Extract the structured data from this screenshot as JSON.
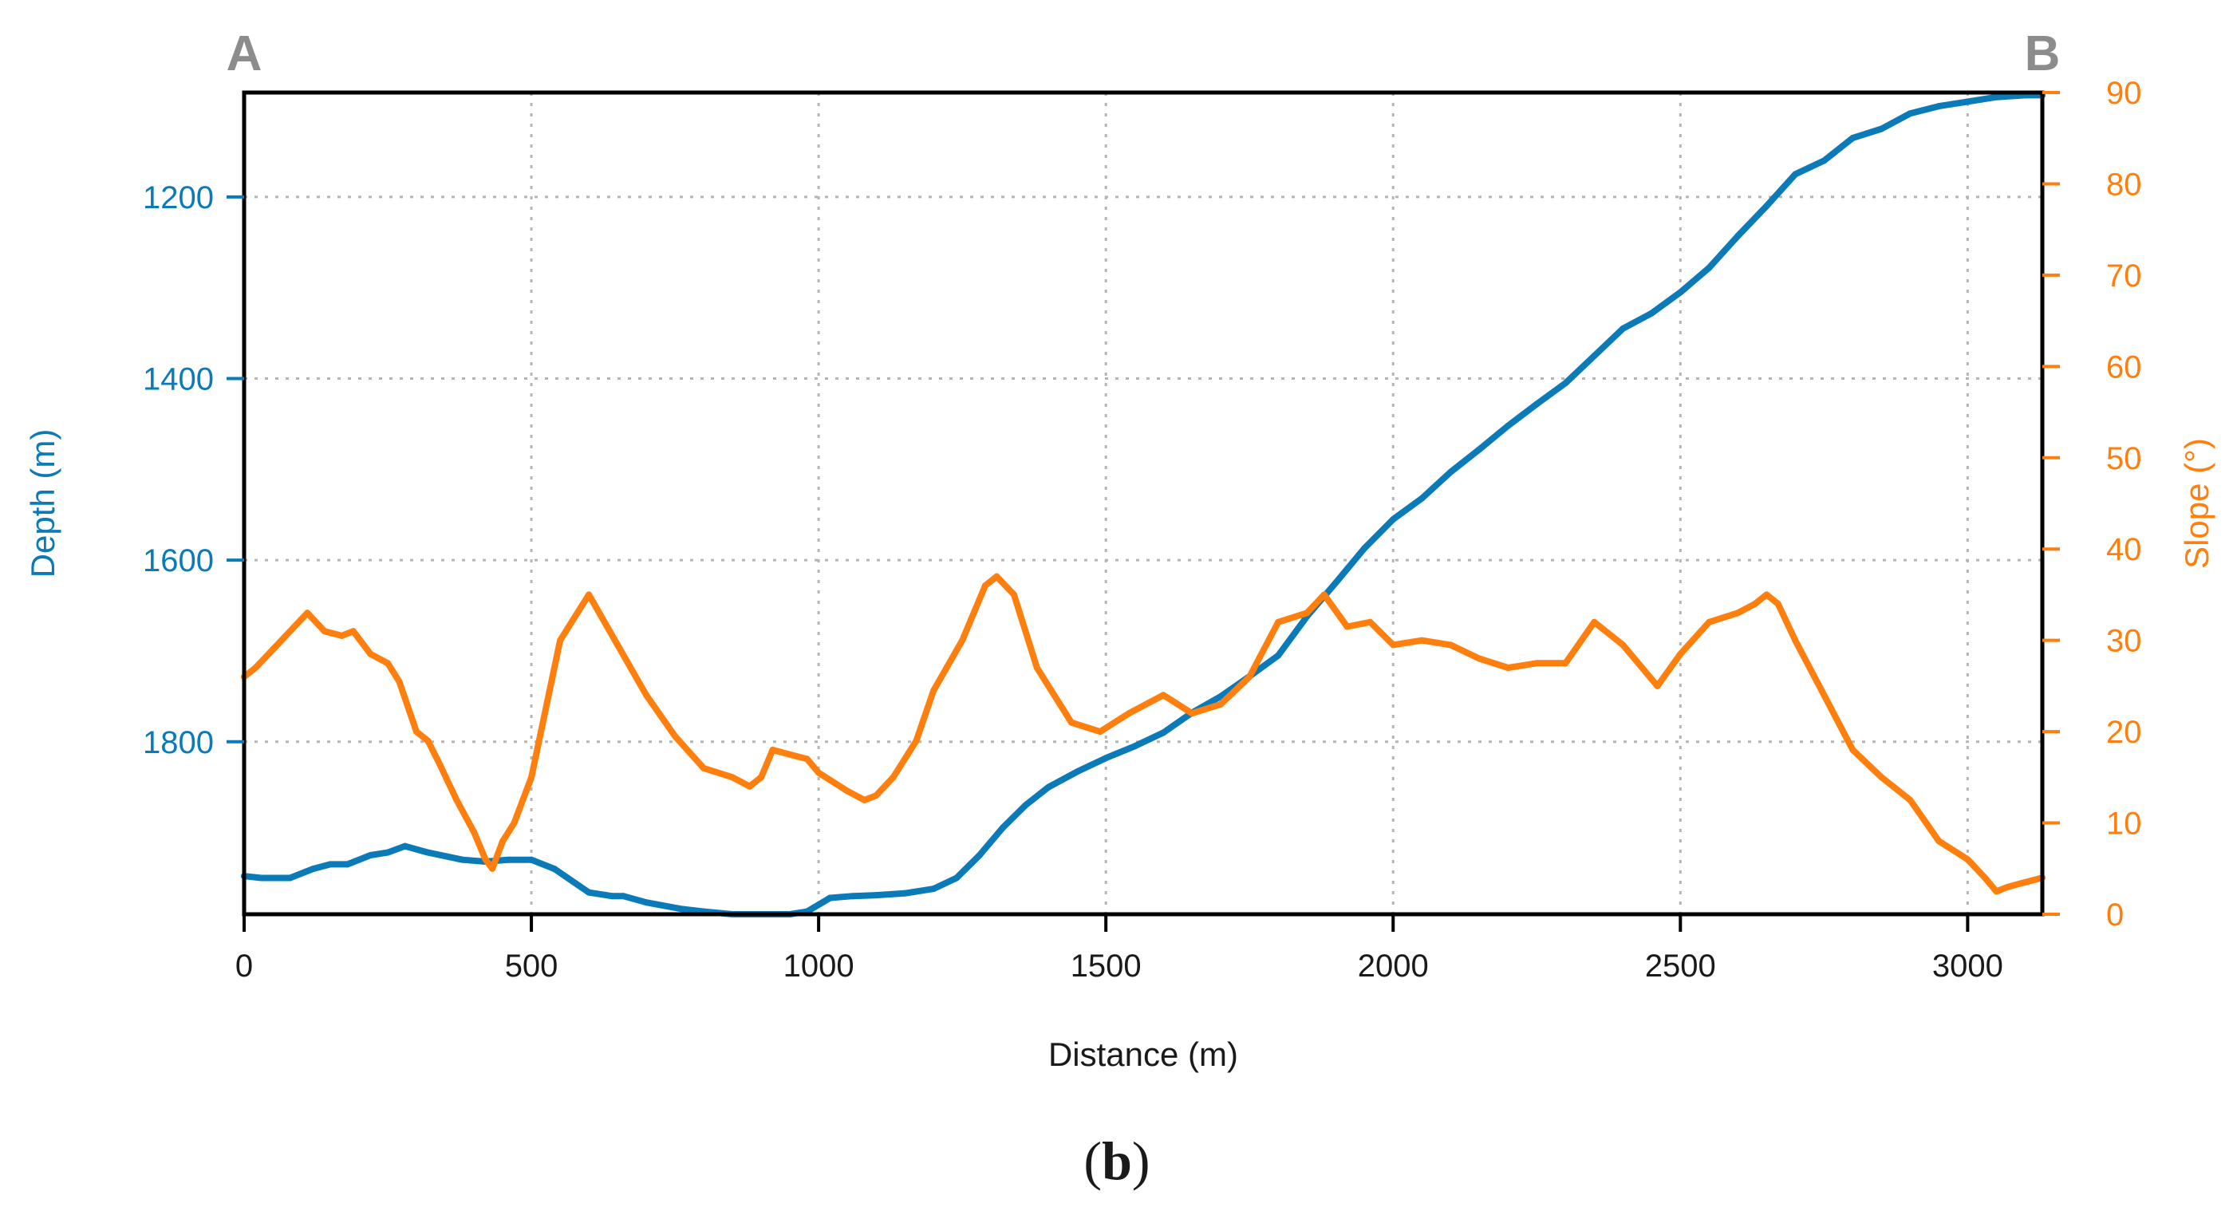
{
  "colors": {
    "depth": "#0a7ab8",
    "slope": "#ff7f0e",
    "corner": "#8c8c8c",
    "axis": "#000000",
    "grid": "#b5b5b5",
    "text": "#1a1a1a"
  },
  "corner_labels": {
    "left": "A",
    "right": "B"
  },
  "panel_label": {
    "open": "(",
    "letter": "b",
    "close": ")"
  },
  "chart_data": {
    "type": "line",
    "title": "",
    "xlabel": "Distance (m)",
    "ylabel_left": "Depth (m)",
    "ylabel_right": "Slope (°)",
    "xlim": [
      0,
      3130
    ],
    "ylim_left": [
      1085,
      1990
    ],
    "ylim_left_inverted": true,
    "ylim_right": [
      0,
      90
    ],
    "grid": true,
    "x_ticks": [
      0,
      500,
      1000,
      1500,
      2000,
      2500,
      3000
    ],
    "x_tick_labels": [
      "0",
      "500",
      "1000",
      "1500",
      "2000",
      "2500",
      "3000"
    ],
    "y_left_ticks": [
      1200,
      1400,
      1600,
      1800
    ],
    "y_left_tick_labels": [
      "1200",
      "1400",
      "1600",
      "1800"
    ],
    "y_right_ticks": [
      0,
      10,
      20,
      30,
      40,
      50,
      60,
      70,
      80,
      90
    ],
    "y_right_tick_labels": [
      "0",
      "10",
      "20",
      "30",
      "40",
      "50",
      "60",
      "70",
      "80",
      "90"
    ],
    "series": [
      {
        "name": "Depth",
        "axis": "left",
        "x": [
          0,
          30,
          80,
          120,
          150,
          180,
          220,
          250,
          280,
          320,
          380,
          420,
          460,
          500,
          540,
          600,
          640,
          660,
          700,
          760,
          800,
          850,
          900,
          950,
          980,
          1020,
          1060,
          1100,
          1150,
          1200,
          1240,
          1280,
          1320,
          1360,
          1400,
          1450,
          1500,
          1550,
          1600,
          1650,
          1700,
          1750,
          1800,
          1850,
          1900,
          1950,
          2000,
          2050,
          2100,
          2150,
          2200,
          2250,
          2300,
          2350,
          2400,
          2450,
          2500,
          2550,
          2600,
          2650,
          2700,
          2750,
          2800,
          2850,
          2900,
          2950,
          3000,
          3050,
          3100,
          3130
        ],
        "values": [
          1948,
          1950,
          1950,
          1940,
          1935,
          1935,
          1925,
          1922,
          1915,
          1922,
          1930,
          1932,
          1930,
          1930,
          1940,
          1966,
          1970,
          1970,
          1977,
          1984,
          1987,
          1990,
          1990,
          1990,
          1987,
          1972,
          1970,
          1969,
          1967,
          1962,
          1950,
          1925,
          1895,
          1870,
          1850,
          1833,
          1818,
          1805,
          1790,
          1768,
          1750,
          1728,
          1705,
          1662,
          1625,
          1587,
          1555,
          1532,
          1503,
          1478,
          1452,
          1428,
          1405,
          1375,
          1345,
          1328,
          1305,
          1278,
          1243,
          1210,
          1175,
          1160,
          1135,
          1125,
          1108,
          1100,
          1095,
          1090,
          1088,
          1088
        ]
      },
      {
        "name": "Slope",
        "axis": "right",
        "x": [
          0,
          20,
          50,
          80,
          110,
          140,
          170,
          190,
          220,
          250,
          270,
          300,
          320,
          340,
          370,
          400,
          420,
          432,
          450,
          470,
          500,
          550,
          600,
          650,
          700,
          750,
          800,
          850,
          880,
          900,
          920,
          950,
          980,
          1000,
          1050,
          1080,
          1100,
          1130,
          1170,
          1200,
          1250,
          1290,
          1310,
          1340,
          1380,
          1440,
          1490,
          1540,
          1600,
          1650,
          1700,
          1750,
          1800,
          1850,
          1880,
          1920,
          1960,
          2000,
          2050,
          2100,
          2150,
          2200,
          2250,
          2300,
          2350,
          2400,
          2460,
          2500,
          2550,
          2600,
          2630,
          2650,
          2670,
          2700,
          2750,
          2800,
          2850,
          2900,
          2950,
          3000,
          3030,
          3050,
          3070,
          3100,
          3130
        ],
        "values": [
          26,
          27,
          29,
          31,
          33,
          31,
          30.5,
          31,
          28.5,
          27.5,
          25.5,
          20,
          19,
          16.5,
          12.5,
          9,
          6,
          5,
          8,
          10,
          15,
          30,
          35,
          29.5,
          24,
          19.5,
          16,
          15,
          14,
          15,
          18,
          17.5,
          17,
          15.5,
          13.5,
          12.5,
          13,
          15,
          19,
          24.5,
          30,
          36,
          37,
          35,
          27,
          21,
          20,
          22,
          24,
          22,
          23,
          26,
          32,
          33,
          35,
          31.5,
          32,
          29.5,
          30,
          29.5,
          28,
          27,
          27.5,
          27.5,
          32,
          29.5,
          25,
          28.5,
          32,
          33,
          34,
          35,
          34,
          30,
          24,
          18,
          15,
          12.5,
          8,
          6,
          4,
          2.5,
          3,
          3.5,
          4
        ]
      }
    ]
  }
}
